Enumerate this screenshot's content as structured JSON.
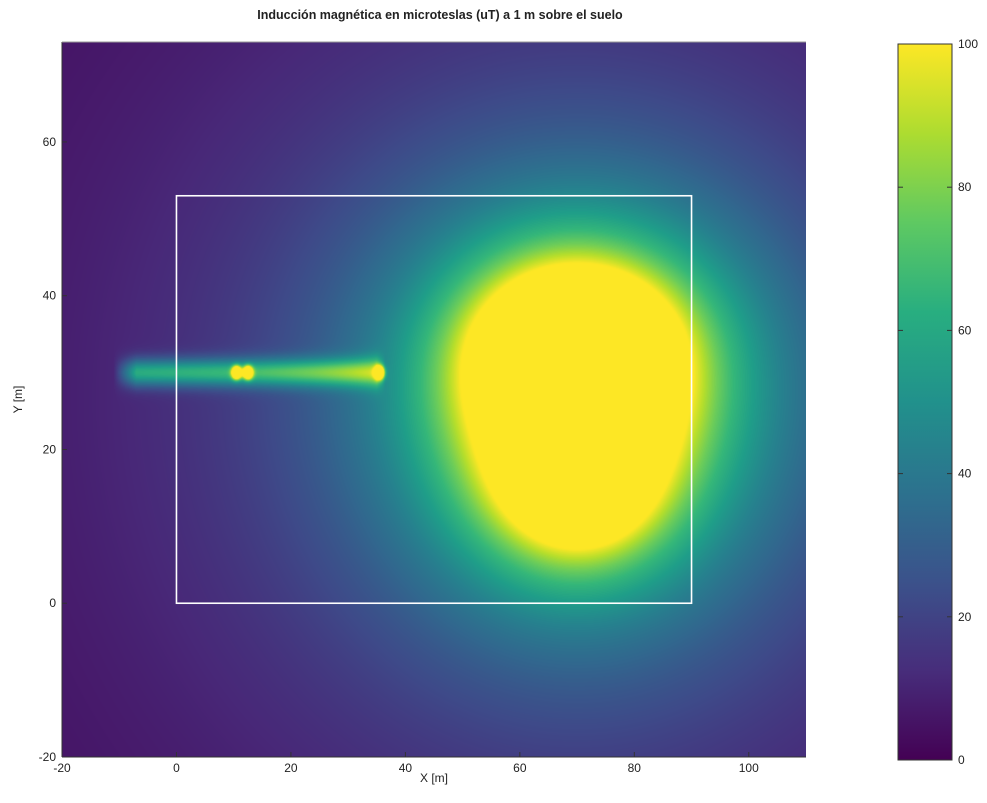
{
  "chart_data": {
    "type": "heatmap",
    "title": "Inducción magnética en microteslas (uT) a 1 m sobre el suelo",
    "xlabel": "X [m]",
    "ylabel": "Y [m]",
    "xlim": [
      -20,
      110
    ],
    "ylim": [
      -20,
      73
    ],
    "xticks": [
      "-20",
      "0",
      "20",
      "40",
      "60",
      "80",
      "100"
    ],
    "yticks": [
      "-20",
      "0",
      "20",
      "40",
      "60"
    ],
    "colorbar": {
      "min": 0,
      "max": 100,
      "ticks": [
        "0",
        "20",
        "40",
        "60",
        "80",
        "100"
      ],
      "colormap": "viridis"
    },
    "boundary_rectangle": {
      "x": [
        0,
        90
      ],
      "y": [
        0,
        53
      ],
      "color": "#ffffff"
    },
    "line_source": {
      "x": [
        -7,
        35
      ],
      "y": 30,
      "approx_value": 50
    },
    "hotspots": [
      {
        "x": 10.5,
        "y": 30,
        "value": 100
      },
      {
        "x": 12.5,
        "y": 30,
        "value": 100
      },
      {
        "x": 35.5,
        "y": 30,
        "value": 100
      }
    ],
    "high_field_region": {
      "x_range": [
        60,
        82
      ],
      "y_range": [
        10,
        40
      ],
      "peak_value": 100
    },
    "grid": false
  }
}
